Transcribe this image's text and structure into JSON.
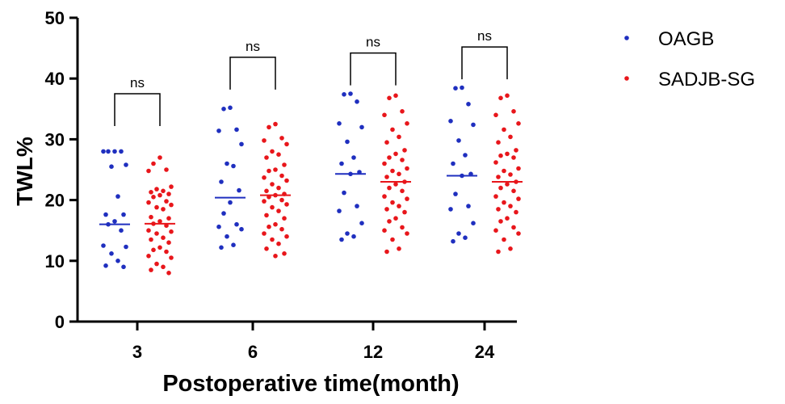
{
  "chart_data": {
    "type": "scatter",
    "subtype": "dot-plot-with-median",
    "title": "",
    "xlabel": "Postoperative time(month)",
    "ylabel": "TWL%",
    "ylim": [
      0,
      50
    ],
    "yticks": [
      0,
      10,
      20,
      30,
      40,
      50
    ],
    "categories": [
      "3",
      "6",
      "12",
      "24"
    ],
    "grid": false,
    "legend_position": "top-right",
    "series": [
      {
        "name": "OAGB",
        "color": "#1f2fbf",
        "medians": [
          16.0,
          20.4,
          24.3,
          24.0
        ],
        "values": [
          [
            28.0,
            28.0,
            28.0,
            28.0,
            25.8,
            25.5,
            20.6,
            17.6,
            17.6,
            16.5,
            16.0,
            15.0,
            12.5,
            12.3,
            11.2,
            10.0,
            9.2,
            9.0
          ],
          [
            35.2,
            35.0,
            31.6,
            31.4,
            29.2,
            26.0,
            25.6,
            23.0,
            21.6,
            19.6,
            17.8,
            16.0,
            15.6,
            15.2,
            14.0,
            12.6,
            12.2
          ],
          [
            37.5,
            37.4,
            36.2,
            32.6,
            32.0,
            29.6,
            27.0,
            26.0,
            24.6,
            24.3,
            21.2,
            19.0,
            18.2,
            16.2,
            14.5,
            14.0,
            13.5
          ],
          [
            38.5,
            38.4,
            35.8,
            33.0,
            32.4,
            29.8,
            27.4,
            26.0,
            24.3,
            24.0,
            21.0,
            19.0,
            18.5,
            16.2,
            14.5,
            13.8,
            13.2
          ]
        ]
      },
      {
        "name": "SADJB-SG",
        "color": "#e8161b",
        "medians": [
          16.1,
          20.8,
          23.0,
          23.0
        ],
        "values": [
          [
            27.0,
            26.0,
            25.0,
            24.8,
            22.2,
            21.8,
            21.5,
            21.3,
            21.0,
            20.8,
            20.5,
            19.8,
            19.6,
            19.2,
            18.8,
            18.5,
            17.2,
            17.0,
            16.5,
            16.1,
            15.8,
            15.0,
            14.8,
            14.5,
            13.8,
            13.5,
            13.0,
            12.2,
            11.8,
            11.5,
            10.8,
            10.5,
            9.5,
            9.0,
            8.5,
            8.0
          ],
          [
            32.5,
            32.0,
            30.2,
            29.8,
            29.2,
            28.0,
            27.5,
            27.0,
            25.8,
            25.0,
            24.8,
            24.0,
            23.7,
            23.2,
            22.6,
            22.0,
            21.5,
            21.0,
            20.8,
            20.5,
            20.0,
            19.8,
            19.3,
            18.8,
            18.2,
            17.5,
            17.0,
            16.0,
            15.6,
            15.2,
            14.5,
            14.0,
            13.5,
            12.8,
            12.0,
            11.2,
            10.8
          ],
          [
            37.2,
            36.8,
            34.6,
            34.0,
            32.6,
            31.6,
            30.4,
            29.5,
            28.2,
            27.6,
            27.0,
            26.6,
            26.0,
            25.2,
            24.8,
            24.3,
            23.8,
            23.0,
            22.6,
            22.0,
            21.5,
            20.6,
            20.2,
            19.6,
            19.0,
            18.5,
            18.0,
            17.0,
            16.5,
            15.5,
            15.0,
            14.5,
            13.5,
            12.0,
            11.5
          ],
          [
            37.2,
            36.8,
            34.6,
            34.0,
            32.6,
            31.6,
            30.4,
            29.5,
            28.2,
            27.6,
            27.3,
            27.0,
            26.2,
            25.2,
            24.8,
            24.2,
            23.8,
            23.0,
            22.6,
            22.0,
            21.5,
            20.6,
            20.2,
            19.6,
            19.0,
            18.5,
            18.0,
            17.0,
            16.5,
            15.5,
            15.0,
            14.5,
            13.5,
            12.0,
            11.5
          ]
        ]
      }
    ],
    "annotations": [
      {
        "category": "3",
        "text": "ns",
        "bracket_y": 37.5
      },
      {
        "category": "6",
        "text": "ns",
        "bracket_y": 43.5
      },
      {
        "category": "12",
        "text": "ns",
        "bracket_y": 44.2
      },
      {
        "category": "24",
        "text": "ns",
        "bracket_y": 45.2
      }
    ]
  }
}
